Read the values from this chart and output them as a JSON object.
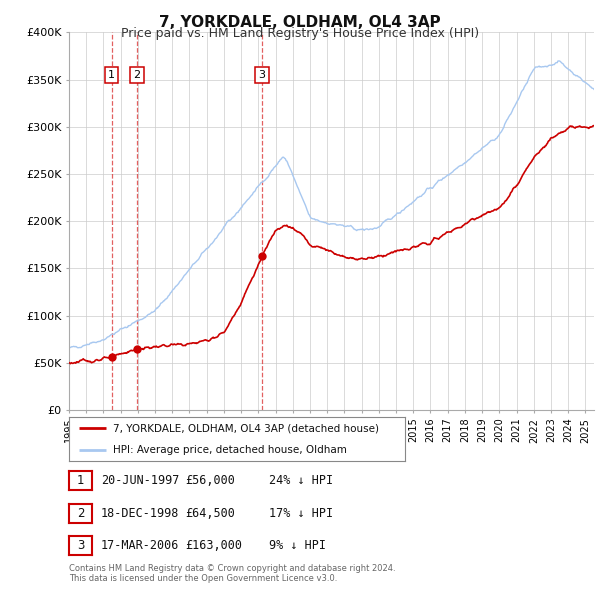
{
  "title": "7, YORKDALE, OLDHAM, OL4 3AP",
  "subtitle": "Price paid vs. HM Land Registry's House Price Index (HPI)",
  "title_fontsize": 11,
  "subtitle_fontsize": 9,
  "background_color": "#ffffff",
  "plot_bg_color": "#ffffff",
  "grid_color": "#cccccc",
  "ylim": [
    0,
    400000
  ],
  "yticks": [
    0,
    50000,
    100000,
    150000,
    200000,
    250000,
    300000,
    350000,
    400000
  ],
  "ytick_labels": [
    "£0",
    "£50K",
    "£100K",
    "£150K",
    "£200K",
    "£250K",
    "£300K",
    "£350K",
    "£400K"
  ],
  "xlim_start": 1995.0,
  "xlim_end": 2025.5,
  "xticks": [
    1995,
    1996,
    1997,
    1998,
    1999,
    2000,
    2001,
    2002,
    2003,
    2004,
    2005,
    2006,
    2007,
    2008,
    2009,
    2010,
    2011,
    2012,
    2013,
    2014,
    2015,
    2016,
    2017,
    2018,
    2019,
    2020,
    2021,
    2022,
    2023,
    2024,
    2025
  ],
  "sale_color": "#cc0000",
  "hpi_color": "#a8c8f0",
  "sale_label": "7, YORKDALE, OLDHAM, OL4 3AP (detached house)",
  "hpi_label": "HPI: Average price, detached house, Oldham",
  "transactions": [
    {
      "num": 1,
      "date_label": "20-JUN-1997",
      "price": 56000,
      "price_label": "£56,000",
      "pct": "24%",
      "year": 1997.47
    },
    {
      "num": 2,
      "date_label": "18-DEC-1998",
      "price": 64500,
      "price_label": "£64,500",
      "pct": "17%",
      "year": 1998.96
    },
    {
      "num": 3,
      "date_label": "17-MAR-2006",
      "price": 163000,
      "price_label": "£163,000",
      "pct": "9%",
      "year": 2006.21
    }
  ],
  "vline_color": "#dd4444",
  "note_line1": "Contains HM Land Registry data © Crown copyright and database right 2024.",
  "note_line2": "This data is licensed under the Open Government Licence v3.0."
}
